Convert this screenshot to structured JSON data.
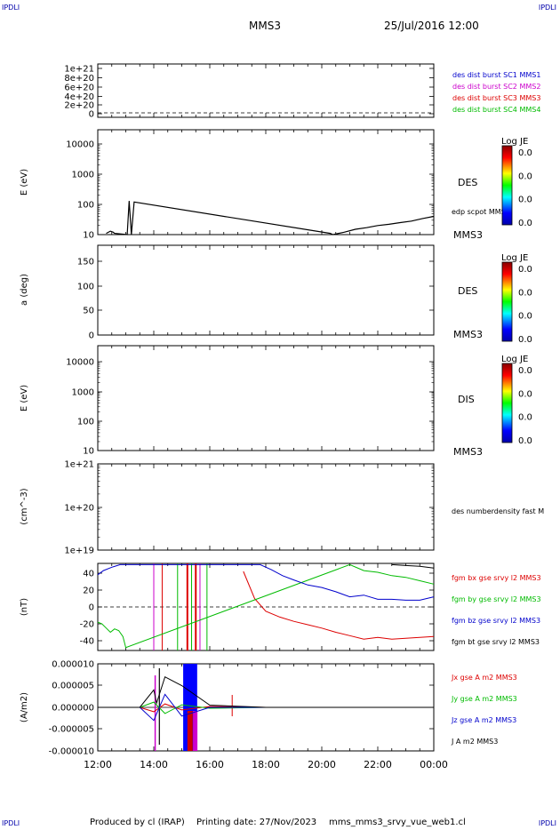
{
  "corner_label": "IPDLI",
  "header": {
    "spacecraft": "MMS3",
    "datetime": "25/Jul/2016 12:00"
  },
  "footer": {
    "produced_by": "Produced by cl (IRAP)",
    "printing_date": "Printing date: 27/Nov/2023",
    "filename": "mms_mms3_srvy_vue_web1.cl"
  },
  "x_axis": {
    "ticks": [
      "12:00",
      "14:00",
      "16:00",
      "18:00",
      "20:00",
      "22:00",
      "00:00"
    ]
  },
  "colors": {
    "blue": "#0000cc",
    "magenta": "#cc00cc",
    "red": "#dd0000",
    "green": "#00bb00",
    "black": "#000000"
  },
  "panels": {
    "burst": {
      "yticks": [
        "1e+21",
        "8e+20",
        "6e+20",
        "4e+20",
        "2e+20",
        "0"
      ],
      "legend": [
        "des dist burst SC1 MMS1",
        "des dist burst SC2 MMS2",
        "des dist burst SC3 MMS3",
        "des dist burst SC4 MMS4"
      ]
    },
    "des_energy": {
      "ylabel": "E (eV)",
      "yticks": [
        "10000",
        "1000",
        "100",
        "10"
      ],
      "label": "DES",
      "sublabel": "MMS3",
      "overlay_label": "edp scpot MMS3",
      "colorbar_title": "Log JE",
      "colorbar_ticks": [
        "0.0",
        "0.0",
        "0.0",
        "0.0"
      ]
    },
    "des_pitch": {
      "ylabel": "a (deg)",
      "yticks": [
        "150",
        "100",
        "50",
        "0"
      ],
      "label": "DES",
      "sublabel": "MMS3",
      "colorbar_title": "Log JE",
      "colorbar_ticks": [
        "0.0",
        "0.0",
        "0.0",
        "0.0"
      ]
    },
    "dis_energy": {
      "ylabel": "E (eV)",
      "yticks": [
        "10000",
        "1000",
        "100",
        "10"
      ],
      "label": "DIS",
      "sublabel": "MMS3",
      "colorbar_title": "Log JE",
      "colorbar_ticks": [
        "0.0",
        "0.0",
        "0.0",
        "0.0"
      ]
    },
    "density": {
      "ylabel": "(cm^-3)",
      "yticks": [
        "1e+21",
        "1e+20",
        "1e+19"
      ],
      "legend": "des numberdensity fast M"
    },
    "fgm": {
      "ylabel": "(nT)",
      "yticks": [
        "40",
        "20",
        "0",
        "-20",
        "-40"
      ],
      "legend": [
        "fgm bx gse srvy l2 MMS3",
        "fgm by gse srvy l2 MMS3",
        "fgm bz gse srvy l2 MMS3",
        "fgm bt gse srvy l2 MMS3"
      ]
    },
    "current": {
      "ylabel": "(A/m2)",
      "yticks": [
        "0.000010",
        "0.000005",
        "0.000000",
        "-0.000005",
        "-0.000010"
      ],
      "legend": [
        "Jx gse A m2 MMS3",
        "Jy gse A m2 MMS3",
        "Jz gse A m2 MMS3",
        "J A m2 MMS3"
      ]
    }
  },
  "chart_data": [
    {
      "type": "line",
      "title": "des dist burst",
      "x_unit": "hours after 12:00",
      "ylim": [
        0,
        1e+21
      ],
      "series": []
    },
    {
      "type": "line",
      "ylabel": "E (eV)",
      "ylim": [
        10,
        20000
      ],
      "yscale": "log",
      "series": [
        {
          "name": "edp scpot MMS3",
          "x": [
            0.3,
            0.45,
            0.55,
            0.6,
            1.05,
            1.12,
            1.2,
            1.3,
            8.3,
            8.4,
            8.8,
            9.2,
            9.6,
            10.0,
            10.4,
            10.8,
            11.2,
            11.6,
            12.0
          ],
          "y": [
            11,
            13,
            12,
            11,
            10,
            130,
            10,
            120,
            11,
            10,
            12,
            15,
            17,
            20,
            22,
            25,
            28,
            34,
            40
          ]
        }
      ]
    },
    {
      "type": "heatmap",
      "ylabel": "a (deg)",
      "ylim": [
        0,
        180
      ],
      "series": []
    },
    {
      "type": "heatmap",
      "ylabel": "E (eV)",
      "ylim": [
        10,
        20000
      ],
      "yscale": "log",
      "series": []
    },
    {
      "type": "line",
      "ylabel": "(cm^-3)",
      "ylim": [
        1e+19,
        1e+21
      ],
      "yscale": "log",
      "series": []
    },
    {
      "type": "line",
      "ylabel": "(nT)",
      "ylim": [
        -50,
        50
      ],
      "series": [
        {
          "name": "fgm bx gse srvy l2 MMS3",
          "x": [
            5.2,
            5.6,
            6.0,
            6.5,
            7.0,
            7.5,
            8.0,
            8.5,
            9.0,
            9.5,
            10.0,
            10.5,
            11.0,
            11.5,
            12.0
          ],
          "y": [
            42,
            10,
            -5,
            -12,
            -17,
            -21,
            -25,
            -30,
            -34,
            -38,
            -36,
            -38,
            -37,
            -36,
            -35
          ]
        },
        {
          "name": "fgm by gse srvy l2 MMS3",
          "x": [
            0.0,
            0.15,
            0.3,
            0.45,
            0.6,
            0.75,
            0.9,
            1.0,
            9.0,
            9.5,
            10.0,
            10.5,
            11.0,
            11.5,
            12.0
          ],
          "y": [
            -18,
            -20,
            -25,
            -30,
            -26,
            -28,
            -35,
            -48,
            50,
            43,
            41,
            37,
            35,
            31,
            27
          ]
        },
        {
          "name": "fgm bz gse srvy l2 MMS3",
          "x": [
            0.0,
            0.2,
            0.5,
            0.8,
            1.0,
            5.8,
            6.2,
            6.6,
            7.0,
            7.5,
            8.0,
            8.5,
            9.0,
            9.5,
            10.0,
            10.5,
            11.0,
            11.5,
            12.0
          ],
          "y": [
            38,
            43,
            47,
            50,
            50,
            50,
            44,
            37,
            32,
            26,
            23,
            18,
            12,
            14,
            9,
            9,
            8,
            8,
            12
          ]
        },
        {
          "name": "fgm bt gse srvy l2 MMS3",
          "x": [
            10.5,
            11.0,
            11.5,
            12.0
          ],
          "y": [
            50,
            49,
            48,
            46
          ]
        }
      ]
    },
    {
      "type": "line",
      "ylabel": "(A/m2)",
      "ylim": [
        -1e-05,
        1e-05
      ],
      "series": [
        {
          "name": "Jx gse A m2 MMS3",
          "x": [
            0,
            1.5,
            2.0,
            2.4,
            3.0,
            4.0,
            6.0,
            12.0
          ],
          "y": [
            0,
            0,
            -1e-06,
            8e-07,
            -6e-07,
            2e-07,
            0,
            0
          ]
        },
        {
          "name": "Jy gse A m2 MMS3",
          "x": [
            0,
            1.5,
            2.0,
            2.4,
            3.0,
            4.0,
            6.0,
            12.0
          ],
          "y": [
            0,
            0,
            1.2e-06,
            -1.4e-06,
            6e-07,
            -2e-07,
            0,
            0
          ]
        },
        {
          "name": "Jz gse A m2 MMS3",
          "x": [
            0,
            1.5,
            2.0,
            2.4,
            3.0,
            4.0,
            6.0,
            12.0
          ],
          "y": [
            0,
            0,
            -3e-06,
            3e-06,
            -2e-06,
            0,
            0,
            0
          ]
        },
        {
          "name": "J A m2 MMS3",
          "x": [
            0,
            1.5,
            2.0,
            2.1,
            2.4,
            3.0,
            4.0,
            6.0,
            12.0
          ],
          "y": [
            0,
            0,
            4e-06,
            1e-06,
            7e-06,
            5e-06,
            5e-07,
            0,
            0
          ]
        }
      ]
    }
  ]
}
